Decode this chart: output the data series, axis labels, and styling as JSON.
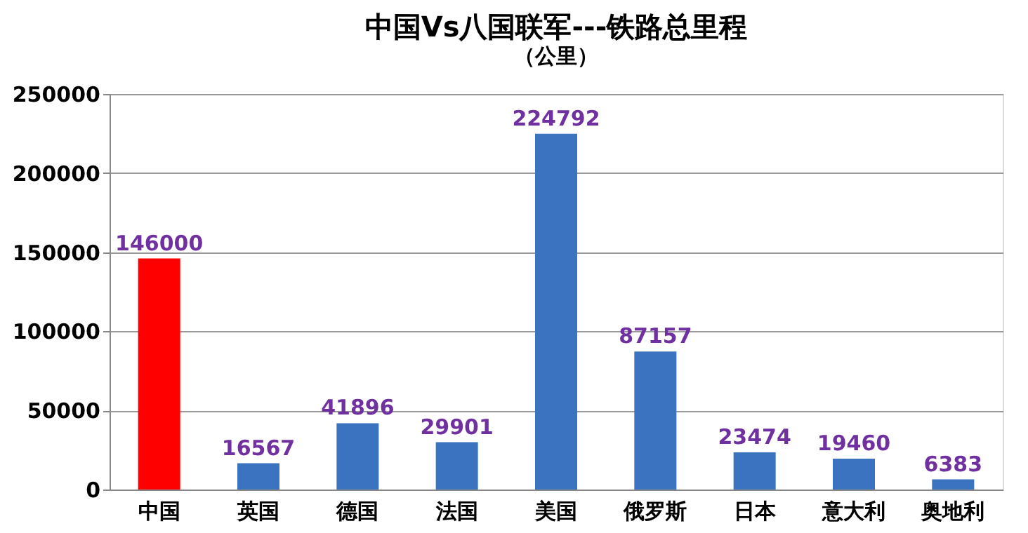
{
  "chart_data": {
    "type": "bar",
    "title": "中国Vs八国联军---铁路总里程",
    "subtitle": "（公里）",
    "categories": [
      "中国",
      "英国",
      "德国",
      "法国",
      "美国",
      "俄罗斯",
      "日本",
      "意大利",
      "奥地利"
    ],
    "values": [
      146000,
      16567,
      41896,
      29901,
      224792,
      87157,
      23474,
      19460,
      6383
    ],
    "colors": [
      "#ff0000",
      "#3b73c0",
      "#3b73c0",
      "#3b73c0",
      "#3b73c0",
      "#3b73c0",
      "#3b73c0",
      "#3b73c0",
      "#3b73c0"
    ],
    "ylim": [
      0,
      250000
    ],
    "yticks": [
      0,
      50000,
      100000,
      150000,
      200000,
      250000
    ],
    "grid": "y",
    "data_labels": true
  }
}
